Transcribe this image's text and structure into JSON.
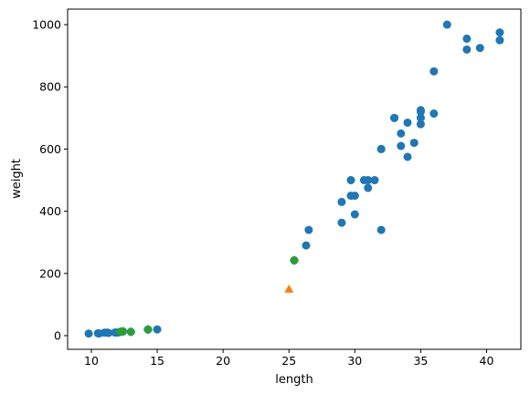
{
  "chart_data": {
    "type": "scatter",
    "title": "",
    "xlabel": "length",
    "ylabel": "weight",
    "xlim": [
      8.2,
      42.6
    ],
    "ylim": [
      -44,
      1050
    ],
    "xticks": [
      10,
      15,
      20,
      25,
      30,
      35,
      40
    ],
    "yticks": [
      0,
      200,
      400,
      600,
      800,
      1000
    ],
    "grid": false,
    "legend": "none",
    "series": [
      {
        "marker": "circle",
        "color": "#1f77b4",
        "points": [
          [
            9.8,
            6.7
          ],
          [
            10.5,
            7.5
          ],
          [
            10.6,
            7.0
          ],
          [
            11.0,
            9.7
          ],
          [
            11.2,
            9.8
          ],
          [
            11.3,
            8.7
          ],
          [
            11.8,
            10.0
          ],
          [
            11.8,
            9.9
          ],
          [
            12.0,
            9.8
          ],
          [
            12.2,
            12.2
          ],
          [
            12.4,
            13.4
          ],
          [
            13.0,
            12.2
          ],
          [
            14.3,
            19.7
          ],
          [
            15.0,
            19.9
          ],
          [
            25.4,
            242
          ],
          [
            26.3,
            290
          ],
          [
            26.5,
            340
          ],
          [
            29.0,
            363
          ],
          [
            29.0,
            430
          ],
          [
            29.7,
            450
          ],
          [
            29.7,
            500
          ],
          [
            30.0,
            390
          ],
          [
            30.0,
            450
          ],
          [
            30.7,
            500
          ],
          [
            31.0,
            475
          ],
          [
            31.0,
            500
          ],
          [
            31.5,
            500
          ],
          [
            32.0,
            340
          ],
          [
            32.0,
            600
          ],
          [
            32.0,
            600
          ],
          [
            33.0,
            700
          ],
          [
            33.0,
            700
          ],
          [
            33.5,
            610
          ],
          [
            33.5,
            650
          ],
          [
            34.0,
            575
          ],
          [
            34.0,
            685
          ],
          [
            34.5,
            620
          ],
          [
            35.0,
            680
          ],
          [
            35.0,
            700
          ],
          [
            35.0,
            725
          ],
          [
            35.0,
            720
          ],
          [
            36.0,
            714
          ],
          [
            36.0,
            850
          ],
          [
            37.0,
            1000
          ],
          [
            38.5,
            920
          ],
          [
            38.5,
            955
          ],
          [
            39.5,
            925
          ],
          [
            41.0,
            975
          ],
          [
            41.0,
            950
          ]
        ]
      },
      {
        "marker": "diamond",
        "color": "#2ca02c",
        "points": [
          [
            25.4,
            242
          ],
          [
            14.3,
            19.7
          ],
          [
            13.0,
            12.2
          ],
          [
            12.4,
            13.4
          ],
          [
            12.2,
            12.2
          ]
        ]
      },
      {
        "marker": "triangle",
        "color": "#ff7f0e",
        "points": [
          [
            25,
            150
          ]
        ]
      }
    ]
  }
}
